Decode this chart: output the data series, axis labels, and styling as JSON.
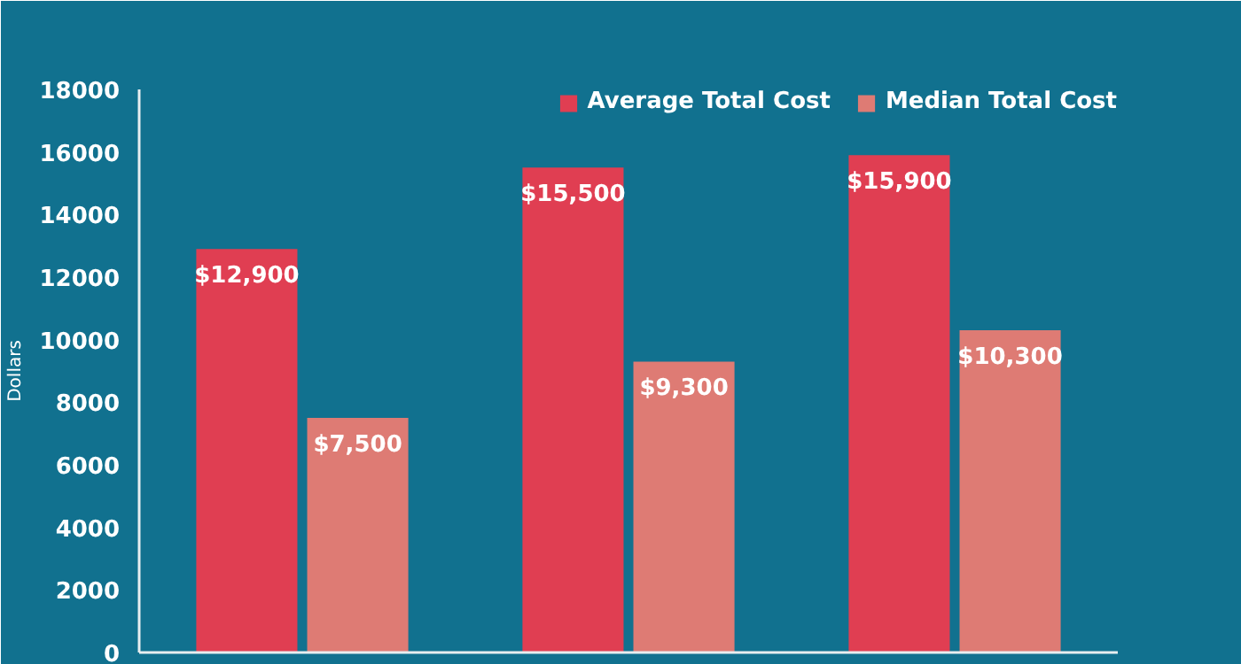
{
  "chart_data": {
    "type": "bar",
    "ylabel": "Dollars",
    "categories": [
      null,
      null,
      null
    ],
    "series": [
      {
        "name": "Average Total Cost",
        "color": "#e03e52",
        "values": [
          12900,
          15500,
          15900
        ]
      },
      {
        "name": "Median Total Cost",
        "color": "#de7b74",
        "values": [
          7500,
          9300,
          10300
        ]
      }
    ],
    "value_labels": [
      [
        "$12,900",
        "$15,500",
        "$15,900"
      ],
      [
        "$7,500",
        "$9,300",
        "$10,300"
      ]
    ],
    "ylim": [
      0,
      18000
    ],
    "yticks": [
      0,
      2000,
      4000,
      6000,
      8000,
      10000,
      12000,
      14000,
      16000,
      18000
    ],
    "grid": false,
    "legend": "top right"
  }
}
